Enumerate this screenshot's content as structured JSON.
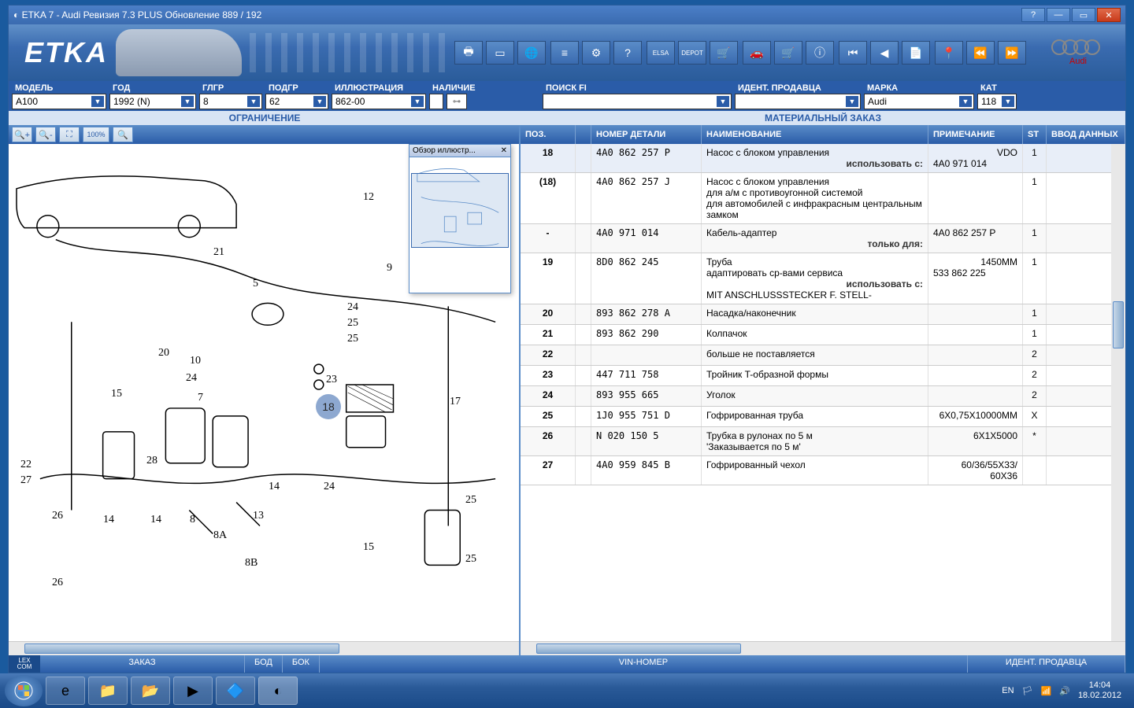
{
  "window": {
    "title": "ETKA 7 - Audi Ревизия 7.3 PLUS Обновление 889 / 192"
  },
  "brand": {
    "logo_text": "ETKA",
    "make": "Audi"
  },
  "filters": {
    "model": {
      "label": "МОДЕЛЬ",
      "value": "A100"
    },
    "year": {
      "label": "ГОД",
      "value": "1992 (N)"
    },
    "glgr": {
      "label": "ГЛГР",
      "value": "8"
    },
    "subgr": {
      "label": "ПОДГР",
      "value": "62"
    },
    "illus": {
      "label": "ИЛЛЮСТРАЦИЯ",
      "value": "862-00"
    },
    "avail": {
      "label": "НАЛИЧИЕ",
      "value": ""
    },
    "searchfi": {
      "label": "ПОИСК FI",
      "value": ""
    },
    "seller": {
      "label": "ИДЕНТ. ПРОДАВЦА",
      "value": ""
    },
    "marka": {
      "label": "МАРКА",
      "value": "Audi"
    },
    "kat": {
      "label": "КАТ",
      "value": "118"
    }
  },
  "sections": {
    "left": "ОГРАНИЧЕНИЕ",
    "right": "МАТЕРИАЛЬНЫЙ ЗАКАЗ"
  },
  "overview": {
    "title": "Обзор иллюстр...",
    "close": "✕"
  },
  "table": {
    "headers": {
      "pos": "ПОЗ.",
      "partno": "НОМЕР ДЕТАЛИ",
      "name": "НАИМЕНОВАНИЕ",
      "note": "ПРИМЕЧАНИЕ",
      "st": "ST",
      "data": "ВВОД ДАННЫХ"
    },
    "rows": [
      {
        "pos": "18",
        "num": "4A0 862 257 P",
        "name": "Насос с блоком управления",
        "sub": "использовать с:",
        "note": "VDO",
        "note2": "4A0 971 014",
        "st": "1",
        "sel": true
      },
      {
        "pos": "(18)",
        "num": "4A0 862 257 J",
        "name": "Насос с блоком управления\nдля а/м с противоугонной системой\nдля автомобилей с инфракрасным центральным замком",
        "note": "",
        "st": "1"
      },
      {
        "pos": "-",
        "num": "4A0 971 014",
        "name": "Кабель-адаптер",
        "sub": "только для:",
        "note2": "4A0 862 257 P",
        "st": "1"
      },
      {
        "pos": "19",
        "num": "8D0 862 245",
        "name": "Труба\nадаптировать ср-вами сервиса",
        "sub": "использовать с:",
        "extra": "MIT ANSCHLUSSSTECKER F. STELL-",
        "note": "1450MM",
        "note2": "533 862 225",
        "st": "1"
      },
      {
        "pos": "20",
        "num": "893 862 278 A",
        "name": "Насадка/наконечник",
        "st": "1"
      },
      {
        "pos": "21",
        "num": "893 862 290",
        "name": "Колпачок",
        "st": "1"
      },
      {
        "pos": "22",
        "num": "",
        "name": "больше не поставляется",
        "st": "2"
      },
      {
        "pos": "23",
        "num": "447 711 758",
        "name": "Тройник T-образной формы",
        "st": "2"
      },
      {
        "pos": "24",
        "num": "893 955 665",
        "name": "Уголок",
        "st": "2"
      },
      {
        "pos": "25",
        "num": "1J0 955 751 D",
        "name": "Гофрированная труба",
        "note": "6X0,75X10000MM",
        "st": "X"
      },
      {
        "pos": "26",
        "num": "N   020 150 5",
        "name": "Трубка в рулонах по 5 м\n'Заказывается по 5 м'",
        "note": "6X1X5000",
        "st": "*"
      },
      {
        "pos": "27",
        "num": "4A0 959 845 B",
        "name": "Гофрированный чехол",
        "note": "60/36/55X33/\n60X36",
        "st": ""
      }
    ]
  },
  "diagram": {
    "highlighted_pos": "18",
    "callouts": [
      "5",
      "7",
      "8",
      "8A",
      "8B",
      "9",
      "10",
      "12",
      "13",
      "14",
      "15",
      "17",
      "18",
      "20",
      "21",
      "22",
      "23",
      "24",
      "25",
      "26",
      "27",
      "28"
    ]
  },
  "bottom": {
    "lexcom": "LEX\nCOM",
    "order": "ЗАКАЗ",
    "bod": "БОД",
    "bok": "БОК",
    "vin": "VIN-НОМЕР",
    "seller": "ИДЕНТ. ПРОДАВЦА"
  },
  "taskbar": {
    "lang": "EN",
    "time": "14:04",
    "date": "18.02.2012"
  }
}
